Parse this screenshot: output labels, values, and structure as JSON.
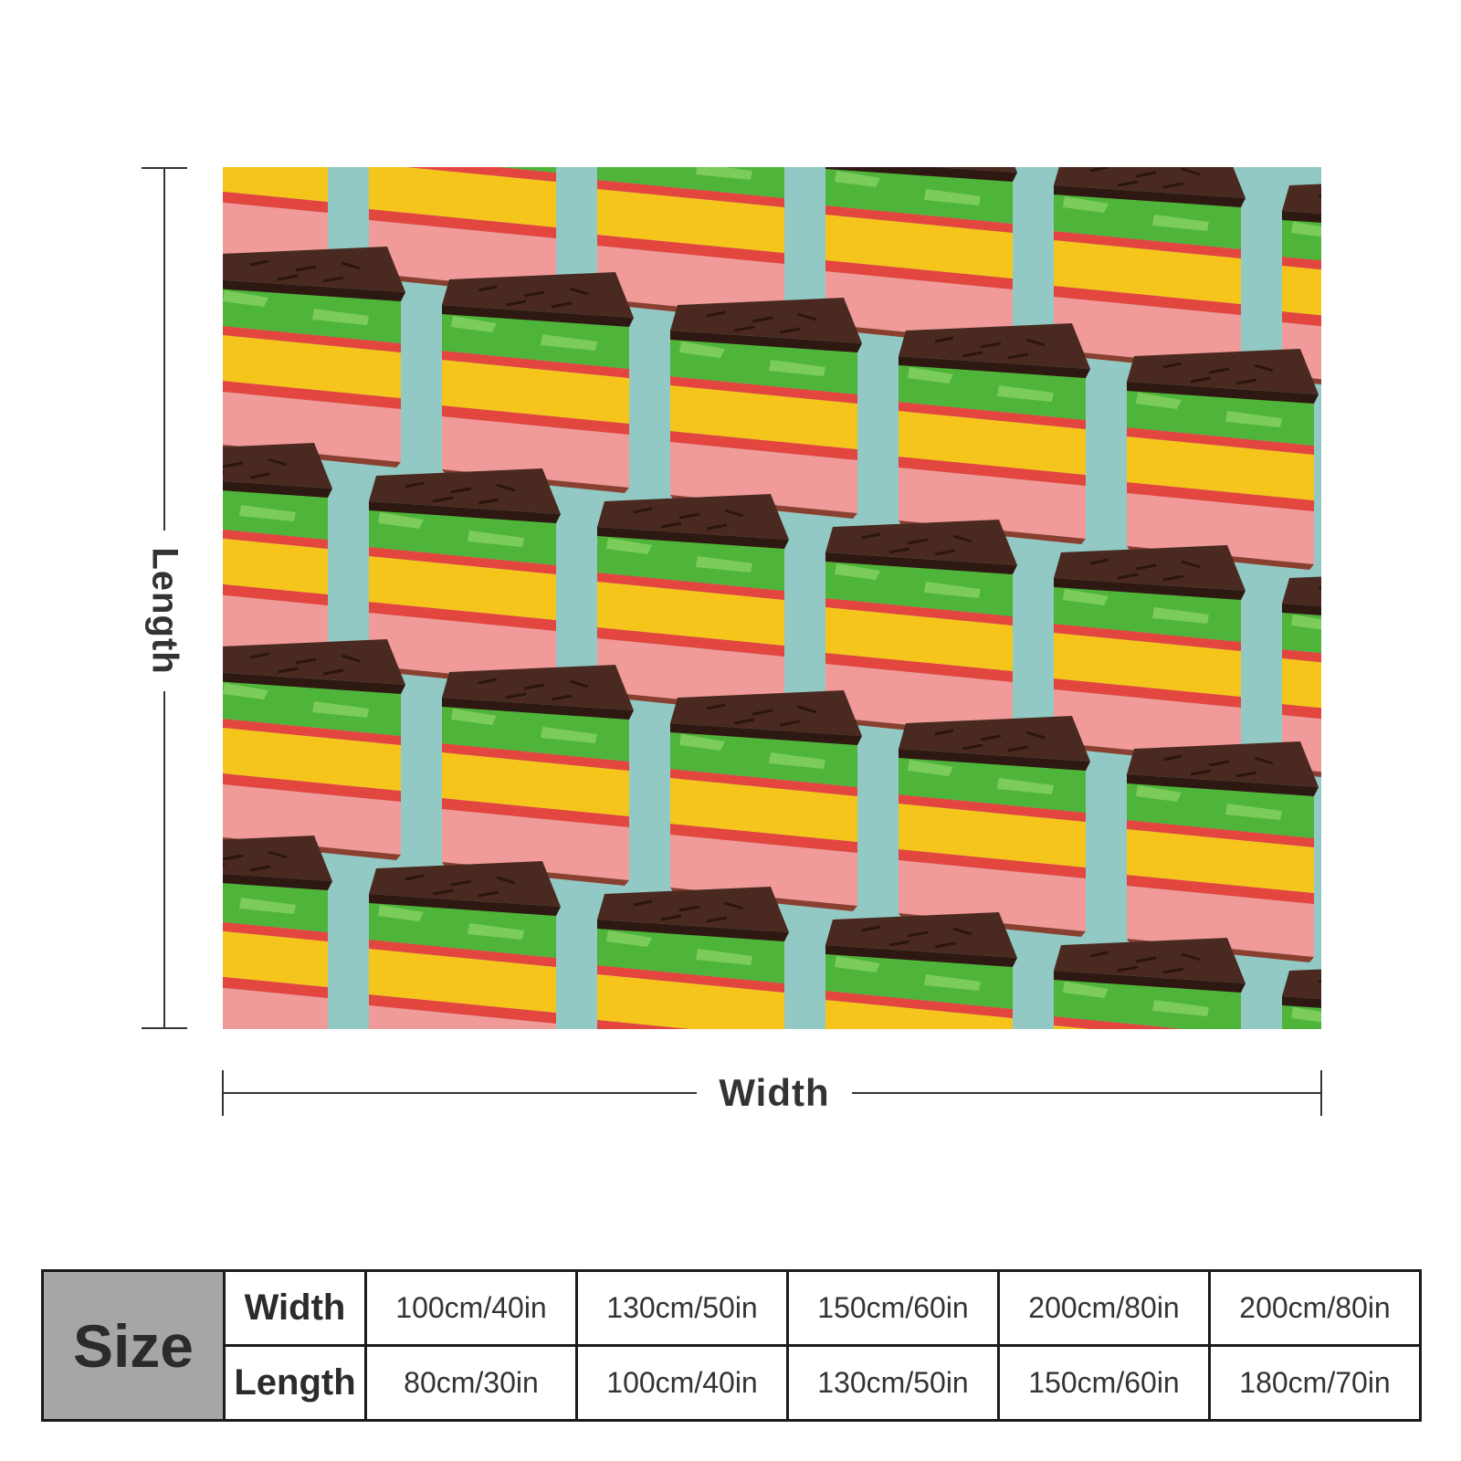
{
  "image": {
    "description_icon": "cake-pattern-image",
    "background_color": "#93c9c4",
    "colors": {
      "chocolate": "#4a2a20",
      "green": "#4fb43a",
      "yellow": "#f6c51c",
      "jam": "#e2463f",
      "pink": "#f19a9a"
    }
  },
  "dimensions": {
    "length_label": "Length",
    "width_label": "Width"
  },
  "size_table": {
    "header": "Size",
    "width_label": "Width",
    "length_label": "Length",
    "widths": [
      "100cm/40in",
      "130cm/50in",
      "150cm/60in",
      "200cm/80in",
      "200cm/80in"
    ],
    "lengths": [
      "80cm/30in",
      "100cm/40in",
      "130cm/50in",
      "150cm/60in",
      "180cm/70in"
    ]
  }
}
